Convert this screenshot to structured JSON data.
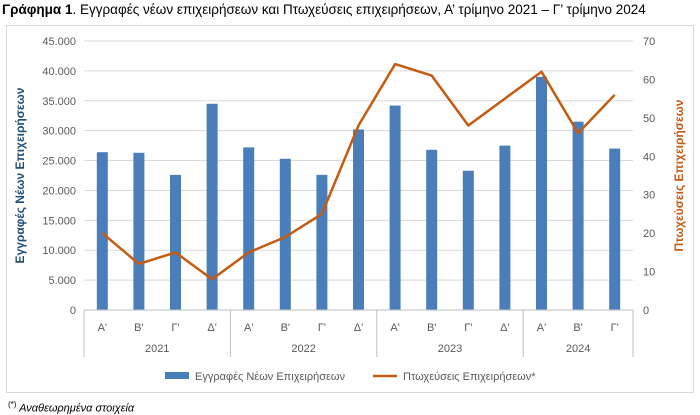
{
  "caption": {
    "bold": "Γράφημα 1",
    "text": ". Εγγραφές νέων επιχειρήσεων και Πτωχεύσεις επιχειρήσεων, Α’ τρίμηνο 2021 – Γ’ τρίμηνο 2024"
  },
  "footnote": {
    "mark": "(*)",
    "text": " Αναθεωρημένα στοιχεία"
  },
  "colors": {
    "bars": "#4a7ebb",
    "line": "#c55a11",
    "left_axis_title": "#1f4e79",
    "right_axis_title": "#c55a11"
  },
  "chart_data": {
    "type": "bar",
    "categories": [
      "Α'",
      "Β'",
      "Γ'",
      "Δ'",
      "Α'",
      "Β'",
      "Γ'",
      "Δ'",
      "Α'",
      "Β'",
      "Γ'",
      "Δ'",
      "Α'",
      "Β'",
      "Γ'"
    ],
    "groups": [
      {
        "label": "2021",
        "count": 4
      },
      {
        "label": "2022",
        "count": 4
      },
      {
        "label": "2023",
        "count": 4
      },
      {
        "label": "2024",
        "count": 3
      }
    ],
    "series": [
      {
        "name": "Εγγραφές Νέων Επιχειρήσεων",
        "type": "bar",
        "axis": "left",
        "values": [
          26400,
          26300,
          22600,
          34500,
          27200,
          25300,
          22600,
          30200,
          34200,
          26800,
          23300,
          27500,
          39000,
          31500,
          27000
        ]
      },
      {
        "name": "Πτωχεύσεις Επιχειρήσεων*",
        "type": "line",
        "axis": "right",
        "values": [
          20,
          12,
          15,
          8,
          15,
          19,
          25,
          48,
          64,
          61,
          48,
          55,
          62,
          46,
          56
        ]
      }
    ],
    "ylabel": "Εγγραφές Νέων Επιχειρήσεων",
    "y2label": "Πτωχεύσεις Επιχειρήσεων",
    "ylim": [
      0,
      45000
    ],
    "y2lim": [
      0,
      70
    ],
    "yticks": [
      "0",
      "5.000",
      "10.000",
      "15.000",
      "20.000",
      "25.000",
      "30.000",
      "35.000",
      "40.000",
      "45.000"
    ],
    "y2ticks": [
      "0",
      "10",
      "20",
      "30",
      "40",
      "50",
      "60",
      "70"
    ],
    "grid": true,
    "legend": "bottom"
  }
}
